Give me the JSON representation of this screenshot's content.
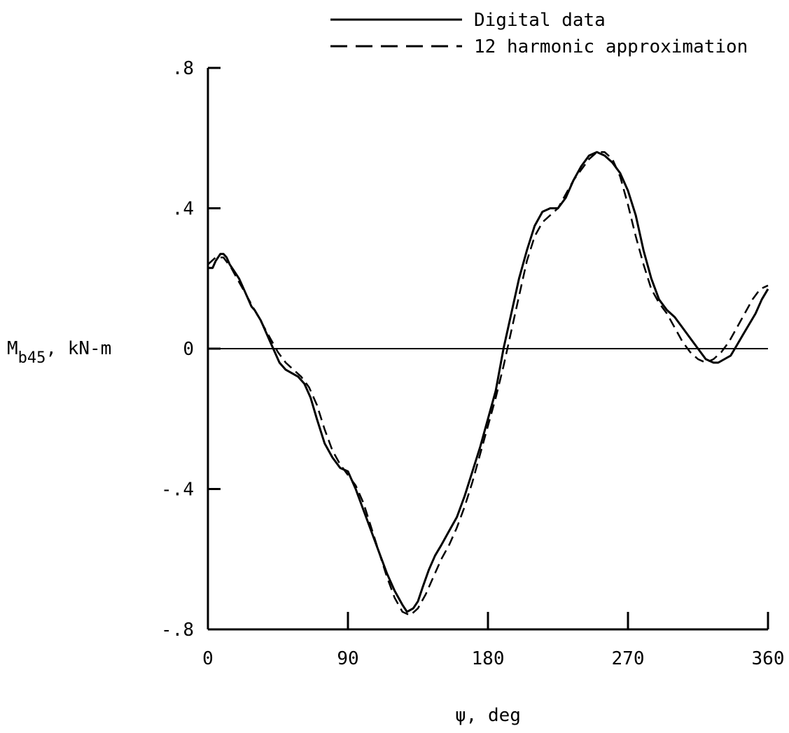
{
  "chart_data": {
    "type": "line",
    "title": "",
    "xlabel": "ψ, deg",
    "ylabel_main": "M",
    "ylabel_sub": "b45",
    "ylabel_unit": ", kN-m",
    "xlim": [
      0,
      360
    ],
    "ylim": [
      -0.8,
      0.8
    ],
    "x_ticks": [
      0,
      90,
      180,
      270,
      360
    ],
    "x_tick_labels": [
      "0",
      "90",
      "180",
      "270",
      "360"
    ],
    "y_ticks": [
      0.8,
      0.4,
      0,
      -0.4,
      -0.8
    ],
    "y_tick_labels": [
      ".8",
      ".4",
      "0",
      "-.4",
      "-.8"
    ],
    "zero_line": true,
    "grid": false,
    "legend_position": "top-center",
    "series": [
      {
        "name": "Digital data",
        "style": "solid",
        "color": "#000000",
        "x": [
          0,
          3,
          5,
          8,
          10,
          12,
          14,
          17,
          20,
          22,
          25,
          28,
          30,
          34,
          38,
          42,
          46,
          50,
          54,
          58,
          62,
          66,
          70,
          75,
          80,
          85,
          90,
          95,
          100,
          105,
          110,
          115,
          120,
          125,
          128,
          132,
          135,
          138,
          142,
          146,
          150,
          155,
          160,
          165,
          170,
          175,
          180,
          185,
          190,
          195,
          200,
          205,
          210,
          215,
          220,
          225,
          230,
          235,
          240,
          245,
          250,
          255,
          260,
          265,
          270,
          275,
          280,
          285,
          290,
          295,
          300,
          305,
          310,
          315,
          320,
          325,
          328,
          332,
          336,
          340,
          344,
          348,
          352,
          356,
          360
        ],
        "y": [
          0.23,
          0.23,
          0.25,
          0.27,
          0.27,
          0.26,
          0.24,
          0.22,
          0.2,
          0.18,
          0.15,
          0.12,
          0.11,
          0.08,
          0.04,
          0.0,
          -0.04,
          -0.06,
          -0.07,
          -0.08,
          -0.1,
          -0.14,
          -0.2,
          -0.27,
          -0.31,
          -0.34,
          -0.35,
          -0.4,
          -0.46,
          -0.52,
          -0.58,
          -0.64,
          -0.69,
          -0.73,
          -0.75,
          -0.74,
          -0.72,
          -0.68,
          -0.63,
          -0.59,
          -0.56,
          -0.52,
          -0.48,
          -0.42,
          -0.35,
          -0.28,
          -0.2,
          -0.12,
          0.0,
          0.1,
          0.2,
          0.28,
          0.35,
          0.39,
          0.4,
          0.4,
          0.43,
          0.48,
          0.52,
          0.55,
          0.56,
          0.55,
          0.53,
          0.5,
          0.45,
          0.38,
          0.28,
          0.2,
          0.14,
          0.11,
          0.09,
          0.06,
          0.03,
          0.0,
          -0.03,
          -0.04,
          -0.04,
          -0.03,
          -0.02,
          0.01,
          0.04,
          0.07,
          0.1,
          0.14,
          0.17
        ]
      },
      {
        "name": "12 harmonic approximation",
        "style": "dashed",
        "color": "#000000",
        "x": [
          0,
          5,
          10,
          15,
          20,
          25,
          30,
          35,
          40,
          45,
          50,
          55,
          60,
          65,
          70,
          75,
          80,
          85,
          90,
          95,
          100,
          105,
          110,
          115,
          120,
          125,
          130,
          135,
          140,
          145,
          150,
          155,
          160,
          165,
          170,
          175,
          180,
          185,
          190,
          195,
          200,
          205,
          210,
          215,
          220,
          225,
          230,
          235,
          240,
          245,
          250,
          255,
          260,
          265,
          270,
          275,
          280,
          285,
          290,
          295,
          300,
          305,
          310,
          315,
          320,
          325,
          330,
          335,
          340,
          345,
          350,
          355,
          360
        ],
        "y": [
          0.24,
          0.26,
          0.26,
          0.23,
          0.19,
          0.15,
          0.11,
          0.07,
          0.03,
          -0.01,
          -0.04,
          -0.06,
          -0.08,
          -0.11,
          -0.16,
          -0.23,
          -0.29,
          -0.33,
          -0.36,
          -0.39,
          -0.44,
          -0.51,
          -0.58,
          -0.65,
          -0.71,
          -0.75,
          -0.76,
          -0.74,
          -0.7,
          -0.65,
          -0.6,
          -0.56,
          -0.51,
          -0.45,
          -0.38,
          -0.3,
          -0.22,
          -0.14,
          -0.05,
          0.05,
          0.15,
          0.25,
          0.32,
          0.36,
          0.38,
          0.4,
          0.44,
          0.48,
          0.51,
          0.54,
          0.56,
          0.56,
          0.54,
          0.49,
          0.41,
          0.32,
          0.24,
          0.17,
          0.13,
          0.1,
          0.06,
          0.02,
          -0.01,
          -0.03,
          -0.04,
          -0.03,
          -0.01,
          0.02,
          0.06,
          0.1,
          0.14,
          0.17,
          0.18
        ]
      }
    ]
  }
}
